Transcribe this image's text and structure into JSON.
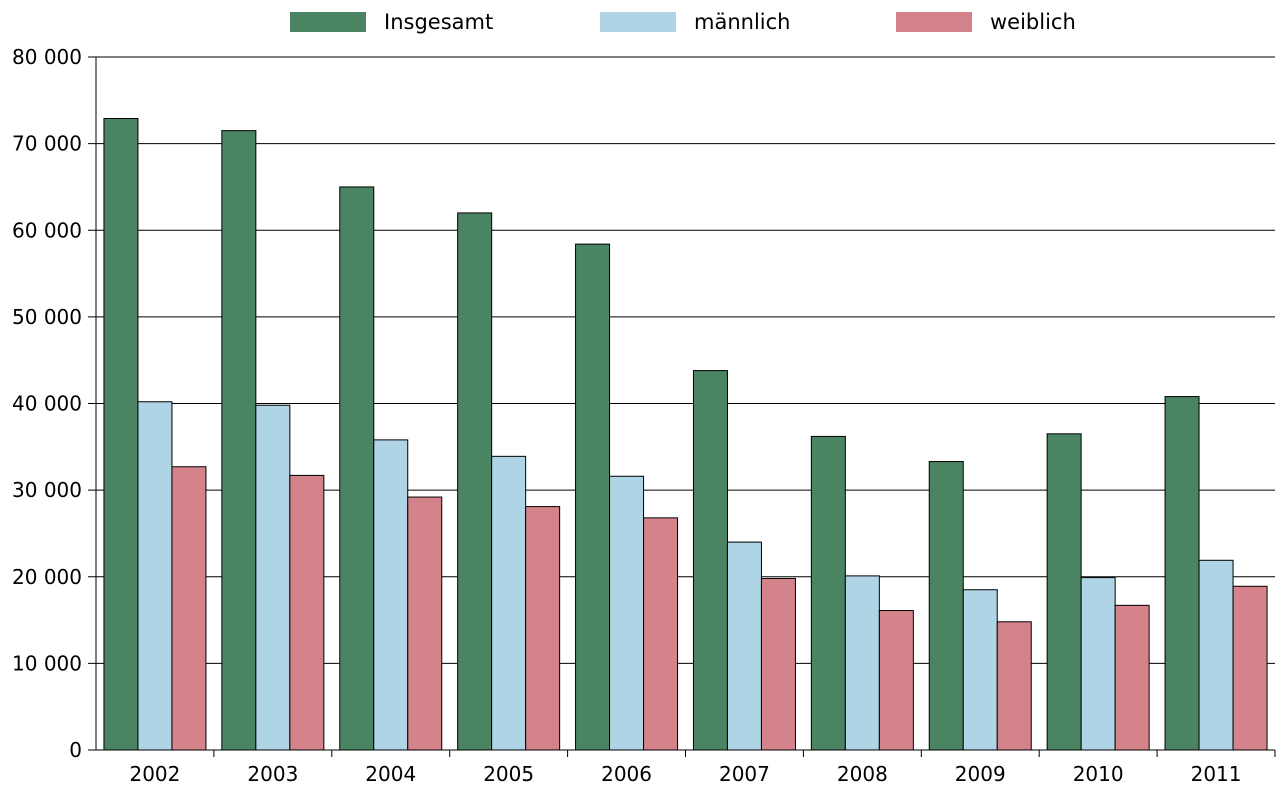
{
  "chart_data": {
    "type": "bar",
    "categories": [
      "2002",
      "2003",
      "2004",
      "2005",
      "2006",
      "2007",
      "2008",
      "2009",
      "2010",
      "2011"
    ],
    "series": [
      {
        "name": "Insgesamt",
        "color": "#4a8462",
        "values": [
          72900,
          71500,
          65000,
          62000,
          58400,
          43800,
          36200,
          33300,
          36500,
          40800
        ]
      },
      {
        "name": "männlich",
        "color": "#aed4e6",
        "values": [
          40200,
          39800,
          35800,
          33900,
          31600,
          24000,
          20100,
          18500,
          19900,
          21900
        ]
      },
      {
        "name": "weiblich",
        "color": "#d5838a",
        "values": [
          32700,
          31700,
          29200,
          28100,
          26800,
          19800,
          16100,
          14800,
          16700,
          18900
        ]
      }
    ],
    "yticks": [
      "0",
      "10 000",
      "20 000",
      "30 000",
      "40 000",
      "50 000",
      "60 000",
      "70 000",
      "80 000"
    ],
    "ylim": [
      0,
      80000
    ],
    "grid": true,
    "legend_position": "top-center"
  }
}
